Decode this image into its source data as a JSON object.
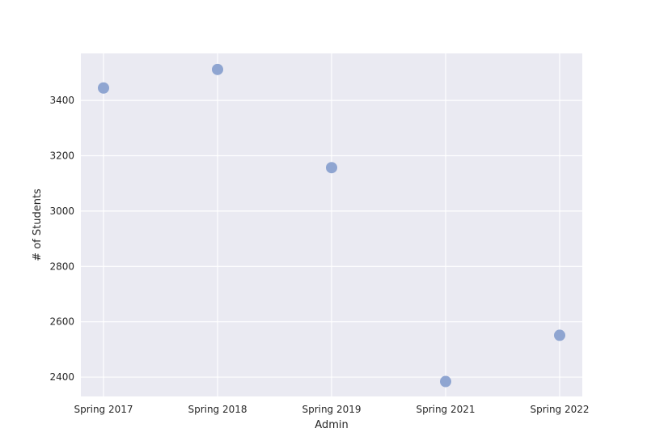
{
  "chart_data": {
    "type": "scatter",
    "title": "",
    "xlabel": "Admin",
    "ylabel": "# of Students",
    "categories": [
      "Spring 2017",
      "Spring 2018",
      "Spring 2019",
      "Spring 2021",
      "Spring 2022"
    ],
    "series": [
      {
        "values": [
          3445,
          3512,
          3157,
          2384,
          2551
        ]
      }
    ],
    "yticks": [
      2400,
      2600,
      2800,
      3000,
      3200,
      3400
    ],
    "ylim": [
      2330,
      3570
    ],
    "grid": true,
    "legend": "none",
    "colors": {
      "background": "#eaeaf2",
      "grid": "#ffffff",
      "marker": "#8fa5d1"
    }
  }
}
